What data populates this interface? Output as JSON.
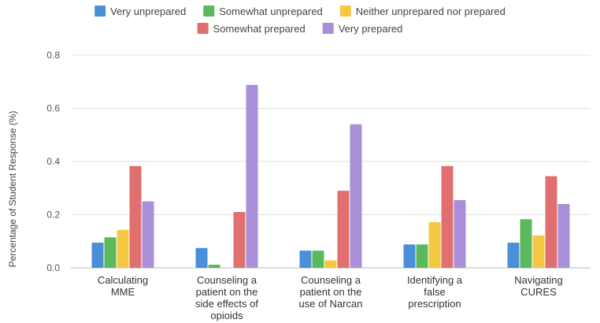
{
  "chart_data": {
    "type": "bar",
    "title": "",
    "xlabel": "",
    "ylabel": "Percentage of Student Response (%)",
    "ylim": [
      0,
      0.8
    ],
    "yticks": [
      "0.0",
      "0.2",
      "0.4",
      "0.6",
      "0.8"
    ],
    "grid": true,
    "legend_position": "top",
    "categories": [
      [
        "Calculating",
        "MME"
      ],
      [
        "Counseling a",
        "patient on the",
        "side effects of",
        "opioids"
      ],
      [
        "Counseling a",
        "patient on the",
        "use of Narcan"
      ],
      [
        "Identifying a",
        "false",
        "prescription"
      ],
      [
        "Navigating",
        "CURES"
      ]
    ],
    "series": [
      {
        "name": "Very unprepared",
        "color": "#4a90d9",
        "values": [
          0.095,
          0.075,
          0.065,
          0.088,
          0.095
        ]
      },
      {
        "name": "Somewhat unprepared",
        "color": "#5cb85c",
        "values": [
          0.115,
          0.012,
          0.065,
          0.088,
          0.183
        ]
      },
      {
        "name": "Neither unprepared nor prepared",
        "color": "#f5c842",
        "values": [
          0.143,
          0.0,
          0.028,
          0.172,
          0.122
        ]
      },
      {
        "name": "Somewhat prepared",
        "color": "#e07070",
        "values": [
          0.383,
          0.21,
          0.29,
          0.383,
          0.345
        ]
      },
      {
        "name": "Very prepared",
        "color": "#a98fd8",
        "values": [
          0.25,
          0.688,
          0.54,
          0.255,
          0.24
        ]
      }
    ]
  }
}
